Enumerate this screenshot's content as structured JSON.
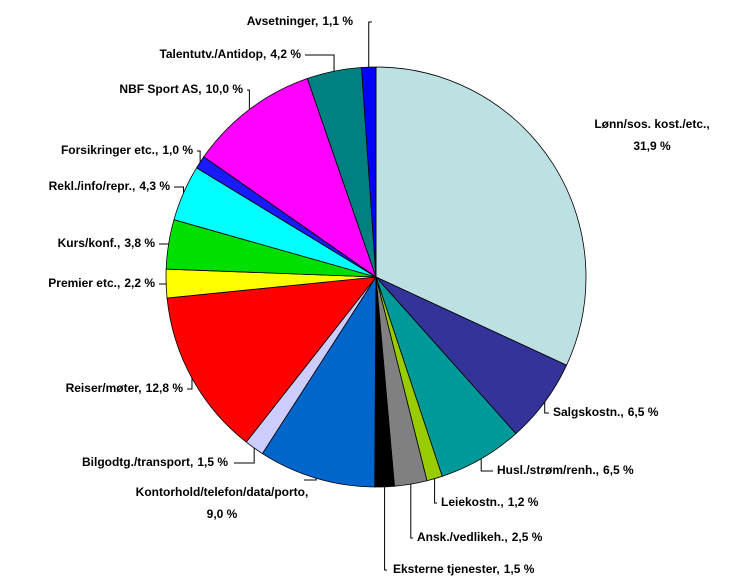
{
  "chart_data": {
    "type": "pie",
    "categories": [
      "Lønn/sos. kost./etc.,",
      "Salgskostn.,",
      "Husl./strøm/renh.,",
      "Leiekostn.,",
      "Ansk./vedlikeh.,",
      "Eksterne tjenester,",
      "Kontorhold/telefon/data/porto,",
      "Bilgodtg./transport,",
      "Reiser/møter,",
      "Premier etc.,",
      "Kurs/konf.,",
      "Rekl./info/repr.,",
      "Forsikringer etc.,",
      "NBF Sport AS,",
      "Talentutv./Antidop,",
      "Avsetninger,"
    ],
    "values": [
      31.9,
      6.5,
      6.5,
      1.2,
      2.5,
      1.5,
      9.0,
      1.5,
      12.8,
      2.2,
      3.8,
      4.3,
      1.0,
      10.0,
      4.2,
      1.1
    ],
    "value_labels": [
      "31,9 %",
      "6,5 %",
      "6,5 %",
      "1,2 %",
      "2,5 %",
      "1,5 %",
      "9,0 %",
      "1,5 %",
      "12,8 %",
      "2,2 %",
      "3,8 %",
      "4,3 %",
      "1,0 %",
      "10,0 %",
      "4,2 %",
      "1,1 %"
    ],
    "colors": [
      "#bde0e3",
      "#333399",
      "#009999",
      "#99cc00",
      "#808080",
      "#000000",
      "#0066cc",
      "#ccccff",
      "#ff0000",
      "#ffff00",
      "#00e000",
      "#00ffff",
      "#1a1aff",
      "#ff00ff",
      "#008080",
      "#0000ff"
    ]
  }
}
